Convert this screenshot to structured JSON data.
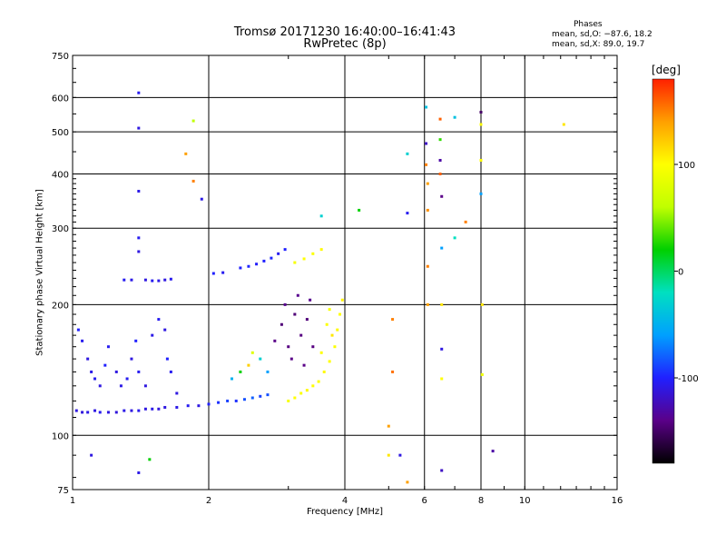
{
  "chart_data": {
    "type": "scatter",
    "title": "Tromsø 20171230 16:40:00–16:41:43",
    "subtitle": "RwPretec (8p)",
    "xlabel": "Frequency [MHz]",
    "ylabel": "Stationary phase Virtual Height [km]",
    "xscale": "log",
    "yscale": "log",
    "xlim": [
      1,
      16
    ],
    "ylim": [
      75,
      750
    ],
    "xticks": [
      1,
      2,
      4,
      6,
      8,
      10,
      16
    ],
    "yticks": [
      75,
      100,
      200,
      300,
      400,
      500,
      600,
      750
    ],
    "grid": true,
    "stats": {
      "heading": "Phases",
      "line1": "mean, sd,O: −87.6, 18.2",
      "line2": "mean, sd,X:  89.0, 19.7"
    },
    "colorbar": {
      "label": "[deg]",
      "range": [
        -180,
        180
      ],
      "ticks": [
        -100,
        0,
        100
      ],
      "colormap": [
        "#000000",
        "#5a0088",
        "#2020ff",
        "#00a0ff",
        "#00e0c0",
        "#00d000",
        "#c0ff00",
        "#ffff00",
        "#ffa000",
        "#ff2000"
      ]
    },
    "points": [
      {
        "x": 1.02,
        "y": 114,
        "c": -110
      },
      {
        "x": 1.05,
        "y": 113,
        "c": -112
      },
      {
        "x": 1.08,
        "y": 113,
        "c": -108
      },
      {
        "x": 1.12,
        "y": 114,
        "c": -110
      },
      {
        "x": 1.15,
        "y": 113,
        "c": -105
      },
      {
        "x": 1.2,
        "y": 113,
        "c": -110
      },
      {
        "x": 1.25,
        "y": 113,
        "c": -112
      },
      {
        "x": 1.3,
        "y": 114,
        "c": -108
      },
      {
        "x": 1.35,
        "y": 114,
        "c": -110
      },
      {
        "x": 1.4,
        "y": 114,
        "c": -106
      },
      {
        "x": 1.45,
        "y": 115,
        "c": -110
      },
      {
        "x": 1.5,
        "y": 115,
        "c": -108
      },
      {
        "x": 1.55,
        "y": 115,
        "c": -112
      },
      {
        "x": 1.6,
        "y": 116,
        "c": -110
      },
      {
        "x": 1.7,
        "y": 116,
        "c": -108
      },
      {
        "x": 1.8,
        "y": 117,
        "c": -105
      },
      {
        "x": 1.9,
        "y": 117,
        "c": -110
      },
      {
        "x": 2.0,
        "y": 118,
        "c": -100
      },
      {
        "x": 2.1,
        "y": 119,
        "c": -95
      },
      {
        "x": 2.2,
        "y": 120,
        "c": -90
      },
      {
        "x": 2.3,
        "y": 120,
        "c": -95
      },
      {
        "x": 2.4,
        "y": 121,
        "c": -85
      },
      {
        "x": 2.5,
        "y": 122,
        "c": -80
      },
      {
        "x": 2.6,
        "y": 123,
        "c": -90
      },
      {
        "x": 2.7,
        "y": 124,
        "c": -85
      },
      {
        "x": 1.03,
        "y": 175,
        "c": -100
      },
      {
        "x": 1.05,
        "y": 165,
        "c": -105
      },
      {
        "x": 1.08,
        "y": 150,
        "c": -110
      },
      {
        "x": 1.1,
        "y": 140,
        "c": -108
      },
      {
        "x": 1.12,
        "y": 135,
        "c": -105
      },
      {
        "x": 1.15,
        "y": 130,
        "c": -110
      },
      {
        "x": 1.18,
        "y": 145,
        "c": -100
      },
      {
        "x": 1.2,
        "y": 160,
        "c": -105
      },
      {
        "x": 1.25,
        "y": 140,
        "c": -110
      },
      {
        "x": 1.28,
        "y": 130,
        "c": -108
      },
      {
        "x": 1.32,
        "y": 135,
        "c": -105
      },
      {
        "x": 1.35,
        "y": 150,
        "c": -110
      },
      {
        "x": 1.38,
        "y": 165,
        "c": -100
      },
      {
        "x": 1.4,
        "y": 140,
        "c": -105
      },
      {
        "x": 1.45,
        "y": 130,
        "c": -110
      },
      {
        "x": 1.5,
        "y": 170,
        "c": -108
      },
      {
        "x": 1.55,
        "y": 185,
        "c": -105
      },
      {
        "x": 1.6,
        "y": 175,
        "c": -110
      },
      {
        "x": 1.62,
        "y": 150,
        "c": -100
      },
      {
        "x": 1.65,
        "y": 140,
        "c": -105
      },
      {
        "x": 1.7,
        "y": 125,
        "c": -110
      },
      {
        "x": 1.3,
        "y": 228,
        "c": -105
      },
      {
        "x": 1.35,
        "y": 228,
        "c": -108
      },
      {
        "x": 1.45,
        "y": 228,
        "c": -110
      },
      {
        "x": 1.5,
        "y": 227,
        "c": -105
      },
      {
        "x": 1.55,
        "y": 227,
        "c": -108
      },
      {
        "x": 1.6,
        "y": 228,
        "c": -110
      },
      {
        "x": 1.65,
        "y": 229,
        "c": -106
      },
      {
        "x": 2.05,
        "y": 236,
        "c": -100
      },
      {
        "x": 2.15,
        "y": 237,
        "c": -105
      },
      {
        "x": 2.35,
        "y": 243,
        "c": -100
      },
      {
        "x": 2.45,
        "y": 245,
        "c": -98
      },
      {
        "x": 2.55,
        "y": 248,
        "c": -102
      },
      {
        "x": 2.65,
        "y": 252,
        "c": -100
      },
      {
        "x": 2.75,
        "y": 256,
        "c": -98
      },
      {
        "x": 2.85,
        "y": 262,
        "c": -105
      },
      {
        "x": 2.95,
        "y": 268,
        "c": -100
      },
      {
        "x": 3.1,
        "y": 250,
        "c": 95
      },
      {
        "x": 3.25,
        "y": 255,
        "c": 100
      },
      {
        "x": 3.4,
        "y": 262,
        "c": 98
      },
      {
        "x": 3.55,
        "y": 268,
        "c": 102
      },
      {
        "x": 2.8,
        "y": 165,
        "c": -140
      },
      {
        "x": 2.9,
        "y": 180,
        "c": -145
      },
      {
        "x": 2.95,
        "y": 200,
        "c": -138
      },
      {
        "x": 3.0,
        "y": 160,
        "c": -142
      },
      {
        "x": 3.05,
        "y": 150,
        "c": -140
      },
      {
        "x": 3.1,
        "y": 190,
        "c": -145
      },
      {
        "x": 3.15,
        "y": 210,
        "c": -138
      },
      {
        "x": 3.2,
        "y": 170,
        "c": -142
      },
      {
        "x": 3.25,
        "y": 145,
        "c": -140
      },
      {
        "x": 3.3,
        "y": 185,
        "c": -144
      },
      {
        "x": 3.35,
        "y": 205,
        "c": -138
      },
      {
        "x": 3.4,
        "y": 160,
        "c": -142
      },
      {
        "x": 2.7,
        "y": 140,
        "c": -60
      },
      {
        "x": 2.6,
        "y": 150,
        "c": -30
      },
      {
        "x": 2.5,
        "y": 155,
        "c": 80
      },
      {
        "x": 2.45,
        "y": 145,
        "c": 120
      },
      {
        "x": 2.35,
        "y": 140,
        "c": 20
      },
      {
        "x": 2.25,
        "y": 135,
        "c": -50
      },
      {
        "x": 3.0,
        "y": 120,
        "c": 95
      },
      {
        "x": 3.1,
        "y": 122,
        "c": 100
      },
      {
        "x": 3.2,
        "y": 125,
        "c": 98
      },
      {
        "x": 3.3,
        "y": 127,
        "c": 102
      },
      {
        "x": 3.4,
        "y": 130,
        "c": 100
      },
      {
        "x": 3.5,
        "y": 133,
        "c": 98
      },
      {
        "x": 3.6,
        "y": 140,
        "c": 102
      },
      {
        "x": 3.7,
        "y": 148,
        "c": 100
      },
      {
        "x": 3.8,
        "y": 160,
        "c": 98
      },
      {
        "x": 3.85,
        "y": 175,
        "c": 102
      },
      {
        "x": 3.9,
        "y": 190,
        "c": 100
      },
      {
        "x": 3.95,
        "y": 205,
        "c": 105
      },
      {
        "x": 3.65,
        "y": 180,
        "c": 98
      },
      {
        "x": 3.75,
        "y": 170,
        "c": 110
      },
      {
        "x": 3.55,
        "y": 155,
        "c": 100
      },
      {
        "x": 3.7,
        "y": 195,
        "c": 95
      },
      {
        "x": 1.1,
        "y": 90,
        "c": -110
      },
      {
        "x": 1.4,
        "y": 82,
        "c": -108
      },
      {
        "x": 1.48,
        "y": 88,
        "c": 20
      },
      {
        "x": 1.4,
        "y": 615,
        "c": -105
      },
      {
        "x": 1.4,
        "y": 510,
        "c": -110
      },
      {
        "x": 1.4,
        "y": 365,
        "c": -108
      },
      {
        "x": 1.4,
        "y": 285,
        "c": -105
      },
      {
        "x": 1.4,
        "y": 265,
        "c": -110
      },
      {
        "x": 1.85,
        "y": 530,
        "c": 60
      },
      {
        "x": 1.78,
        "y": 445,
        "c": 140
      },
      {
        "x": 1.85,
        "y": 385,
        "c": 150
      },
      {
        "x": 1.93,
        "y": 350,
        "c": -108
      },
      {
        "x": 3.55,
        "y": 320,
        "c": -30
      },
      {
        "x": 4.3,
        "y": 330,
        "c": 20
      },
      {
        "x": 5.0,
        "y": 105,
        "c": 140
      },
      {
        "x": 5.0,
        "y": 90,
        "c": 110
      },
      {
        "x": 5.3,
        "y": 90,
        "c": -110
      },
      {
        "x": 5.5,
        "y": 78,
        "c": 140
      },
      {
        "x": 5.5,
        "y": 325,
        "c": -105
      },
      {
        "x": 5.5,
        "y": 445,
        "c": -30
      },
      {
        "x": 5.1,
        "y": 185,
        "c": 150
      },
      {
        "x": 5.1,
        "y": 140,
        "c": 155
      },
      {
        "x": 6.05,
        "y": 570,
        "c": -40
      },
      {
        "x": 6.05,
        "y": 470,
        "c": -120
      },
      {
        "x": 6.05,
        "y": 420,
        "c": 150
      },
      {
        "x": 6.1,
        "y": 380,
        "c": 140
      },
      {
        "x": 6.1,
        "y": 330,
        "c": 145
      },
      {
        "x": 6.1,
        "y": 245,
        "c": 150
      },
      {
        "x": 6.1,
        "y": 200,
        "c": 140
      },
      {
        "x": 6.5,
        "y": 535,
        "c": 160
      },
      {
        "x": 6.5,
        "y": 480,
        "c": 30
      },
      {
        "x": 6.5,
        "y": 430,
        "c": -130
      },
      {
        "x": 6.5,
        "y": 400,
        "c": 160
      },
      {
        "x": 6.55,
        "y": 355,
        "c": -140
      },
      {
        "x": 6.55,
        "y": 270,
        "c": -60
      },
      {
        "x": 6.55,
        "y": 200,
        "c": 110
      },
      {
        "x": 6.55,
        "y": 158,
        "c": -110
      },
      {
        "x": 6.55,
        "y": 135,
        "c": 100
      },
      {
        "x": 6.55,
        "y": 83,
        "c": -120
      },
      {
        "x": 7.0,
        "y": 540,
        "c": -40
      },
      {
        "x": 7.0,
        "y": 285,
        "c": -20
      },
      {
        "x": 7.4,
        "y": 310,
        "c": 150
      },
      {
        "x": 8.0,
        "y": 555,
        "c": -150
      },
      {
        "x": 8.0,
        "y": 520,
        "c": 100
      },
      {
        "x": 8.0,
        "y": 430,
        "c": 100
      },
      {
        "x": 8.0,
        "y": 360,
        "c": -60
      },
      {
        "x": 8.05,
        "y": 200,
        "c": 110
      },
      {
        "x": 8.05,
        "y": 138,
        "c": 90
      },
      {
        "x": 8.5,
        "y": 92,
        "c": -130
      },
      {
        "x": 12.2,
        "y": 520,
        "c": 110
      }
    ]
  }
}
